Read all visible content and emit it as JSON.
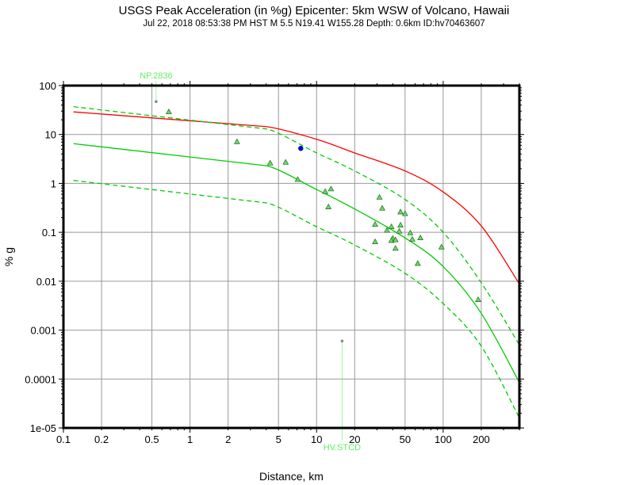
{
  "chart_data": {
    "type": "scatter",
    "title": "USGS Peak Acceleration (in %g) Epicenter: 5km WSW of Volcano, Hawaii",
    "subtitle": "Jul 22, 2018 08:53:38 PM HST   M 5.5   N19.41 W155.28   Depth: 0.6km   ID:hv70463607",
    "xlabel": "Distance, km",
    "ylabel": "% g",
    "xscale": "log",
    "yscale": "log",
    "xlim": [
      0.1,
      400
    ],
    "ylim": [
      1e-05,
      100
    ],
    "grid": true,
    "x_ticks": [
      {
        "value": 0.1,
        "label": "0.1"
      },
      {
        "value": 0.2,
        "label": "0.2"
      },
      {
        "value": 0.5,
        "label": "0.5"
      },
      {
        "value": 1,
        "label": "1"
      },
      {
        "value": 2,
        "label": "2"
      },
      {
        "value": 5,
        "label": "5"
      },
      {
        "value": 10,
        "label": "10"
      },
      {
        "value": 20,
        "label": "20"
      },
      {
        "value": 50,
        "label": "50"
      },
      {
        "value": 100,
        "label": "100"
      },
      {
        "value": 200,
        "label": "200"
      }
    ],
    "y_ticks": [
      {
        "value": 100,
        "label": "100"
      },
      {
        "value": 10,
        "label": "10"
      },
      {
        "value": 1,
        "label": "1"
      },
      {
        "value": 0.1,
        "label": "0.1"
      },
      {
        "value": 0.01,
        "label": "0.01"
      },
      {
        "value": 0.001,
        "label": "0.001"
      },
      {
        "value": 0.0001,
        "label": "0.0001"
      },
      {
        "value": 1e-05,
        "label": "1e-05"
      }
    ],
    "curves": [
      {
        "name": "upper-bound-red",
        "color": "#ff0000",
        "dashed": false,
        "points": [
          [
            0.12,
            29
          ],
          [
            4,
            14.5
          ],
          [
            10,
            8
          ],
          [
            20,
            4.2
          ],
          [
            50,
            1.8
          ],
          [
            100,
            0.67
          ],
          [
            200,
            0.135
          ],
          [
            400,
            0.0088
          ]
        ]
      },
      {
        "name": "median-plus-sigma",
        "color": "#00cc00",
        "dashed": true,
        "points": [
          [
            0.12,
            37
          ],
          [
            4,
            13
          ],
          [
            10,
            4.2
          ],
          [
            20,
            1.8
          ],
          [
            50,
            0.47
          ],
          [
            100,
            0.1
          ],
          [
            200,
            0.0093
          ],
          [
            400,
            0.0005
          ]
        ]
      },
      {
        "name": "median",
        "color": "#00cc00",
        "dashed": false,
        "points": [
          [
            0.12,
            6.5
          ],
          [
            4,
            2.3
          ],
          [
            10,
            0.75
          ],
          [
            20,
            0.3
          ],
          [
            50,
            0.077
          ],
          [
            100,
            0.02
          ],
          [
            200,
            0.0022
          ],
          [
            400,
            8.5e-05
          ]
        ]
      },
      {
        "name": "median-minus-sigma",
        "color": "#00cc00",
        "dashed": true,
        "points": [
          [
            0.12,
            1.15
          ],
          [
            4,
            0.4
          ],
          [
            10,
            0.13
          ],
          [
            20,
            0.055
          ],
          [
            50,
            0.0145
          ],
          [
            100,
            0.0035
          ],
          [
            200,
            0.00047
          ],
          [
            400,
            1.6e-05
          ]
        ]
      }
    ],
    "stations": [
      [
        0.68,
        29
      ],
      [
        2.35,
        7.1
      ],
      [
        4.3,
        2.6
      ],
      [
        5.7,
        2.7
      ],
      [
        7.1,
        1.2
      ],
      [
        11.7,
        0.68
      ],
      [
        13,
        0.77
      ],
      [
        12.4,
        0.33
      ],
      [
        31.4,
        0.52
      ],
      [
        33,
        0.31
      ],
      [
        46,
        0.26
      ],
      [
        50,
        0.24
      ],
      [
        29,
        0.145
      ],
      [
        39,
        0.13
      ],
      [
        46,
        0.14
      ],
      [
        36,
        0.11
      ],
      [
        45,
        0.105
      ],
      [
        55,
        0.097
      ],
      [
        40,
        0.075
      ],
      [
        39,
        0.068
      ],
      [
        42,
        0.07
      ],
      [
        66,
        0.077
      ],
      [
        57,
        0.072
      ],
      [
        29,
        0.064
      ],
      [
        42,
        0.047
      ],
      [
        97,
        0.05
      ],
      [
        63,
        0.023
      ],
      [
        189,
        0.0042
      ]
    ],
    "station_color": "#66dd66",
    "epicenter_point": {
      "x": 7.5,
      "y": 5.2,
      "color": "#0000cc"
    },
    "flagged_stations": [
      {
        "label": "NP.2836",
        "x": 0.54,
        "y": 47,
        "label_position": "top"
      },
      {
        "label": "HV.STCD",
        "x": 15.9,
        "y": 0.0006,
        "label_position": "bottom"
      }
    ],
    "flag_color": "#66ee66"
  }
}
